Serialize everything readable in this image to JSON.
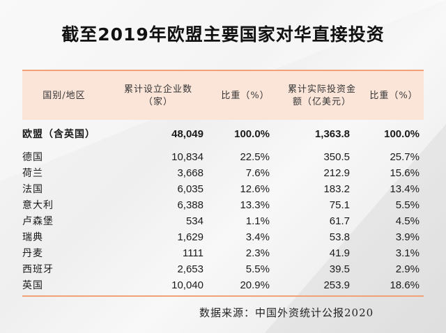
{
  "title": "截至2019年欧盟主要国家对华直接投资",
  "table": {
    "headers": [
      "国别/地区",
      "累计设立企业数（家）",
      "比重（%）",
      "累计实际投资金额（亿美元）",
      "比重（%）"
    ],
    "header_lines": {
      "h0": "国别/地区",
      "h1a": "累计设立企业数",
      "h1b": "（家）",
      "h2": "比重（%）",
      "h3a": "累计实际投资金",
      "h3b": "额（亿美元）",
      "h4": "比重（%）"
    },
    "rows": [
      [
        "欧盟（含英国）",
        "48,049",
        "100.0%",
        "1,363.8",
        "100.0%"
      ],
      [
        "德国",
        "10,834",
        "22.5%",
        "350.5",
        "25.7%"
      ],
      [
        "荷兰",
        "3,668",
        "7.6%",
        "212.9",
        "15.6%"
      ],
      [
        "法国",
        "6,035",
        "12.6%",
        "183.2",
        "13.4%"
      ],
      [
        "意大利",
        "6,388",
        "13.3%",
        "75.1",
        "5.5%"
      ],
      [
        "卢森堡",
        "534",
        "1.1%",
        "61.7",
        "4.5%"
      ],
      [
        "瑞典",
        "1,629",
        "3.4%",
        "53.8",
        "3.9%"
      ],
      [
        "丹麦",
        "1111",
        "2.3%",
        "41.9",
        "3.1%"
      ],
      [
        "西班牙",
        "2,653",
        "5.5%",
        "39.5",
        "2.9%"
      ],
      [
        "英国",
        "10,040",
        "20.9%",
        "253.9",
        "18.6%"
      ]
    ]
  },
  "source": "数据来源：中国外资统计公报2020",
  "colors": {
    "header_fill": "#fbe5d9",
    "accent_line": "#f0a276"
  }
}
